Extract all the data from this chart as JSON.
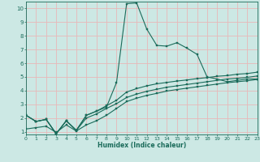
{
  "xlabel": "Humidex (Indice chaleur)",
  "bg_color": "#cce8e4",
  "grid_color": "#e8b8b8",
  "line_color": "#1a6b5a",
  "xlim": [
    0,
    23
  ],
  "ylim": [
    0.8,
    10.5
  ],
  "xticks": [
    0,
    1,
    2,
    3,
    4,
    5,
    6,
    7,
    8,
    9,
    10,
    11,
    12,
    13,
    14,
    15,
    16,
    17,
    18,
    19,
    20,
    21,
    22,
    23
  ],
  "yticks": [
    1,
    2,
    3,
    4,
    5,
    6,
    7,
    8,
    9,
    10
  ],
  "spike_x": [
    0,
    1,
    2,
    3,
    4,
    5,
    6,
    7,
    8,
    9,
    10,
    11,
    12,
    13,
    14,
    15,
    16,
    17,
    18,
    19,
    20,
    21,
    22,
    23
  ],
  "spike_y": [
    2.2,
    1.75,
    1.9,
    0.85,
    1.8,
    1.1,
    2.2,
    2.5,
    2.8,
    4.6,
    10.35,
    10.4,
    8.5,
    7.3,
    7.25,
    7.5,
    7.1,
    6.65,
    5.0,
    4.85,
    4.65,
    4.75,
    4.85,
    4.85
  ],
  "smooth1_x": [
    0,
    1,
    2,
    3,
    4,
    5,
    6,
    7,
    8,
    9,
    10,
    11,
    12,
    13,
    14,
    15,
    16,
    17,
    18,
    19,
    20,
    21,
    22,
    23
  ],
  "smooth1_y": [
    2.2,
    1.75,
    1.9,
    0.85,
    1.8,
    1.1,
    2.2,
    2.5,
    2.9,
    3.3,
    3.9,
    4.15,
    4.35,
    4.5,
    4.6,
    4.7,
    4.78,
    4.88,
    4.95,
    5.05,
    5.1,
    5.2,
    5.25,
    5.35
  ],
  "smooth2_x": [
    0,
    1,
    2,
    3,
    4,
    5,
    6,
    7,
    8,
    9,
    10,
    11,
    12,
    13,
    14,
    15,
    16,
    17,
    18,
    19,
    20,
    21,
    22,
    23
  ],
  "smooth2_y": [
    2.2,
    1.75,
    1.9,
    0.85,
    1.8,
    1.1,
    2.0,
    2.3,
    2.7,
    3.05,
    3.5,
    3.75,
    3.95,
    4.1,
    4.25,
    4.35,
    4.45,
    4.55,
    4.65,
    4.75,
    4.85,
    4.9,
    4.97,
    5.07
  ],
  "smooth3_x": [
    0,
    1,
    2,
    3,
    4,
    5,
    6,
    7,
    8,
    9,
    10,
    11,
    12,
    13,
    14,
    15,
    16,
    17,
    18,
    19,
    20,
    21,
    22,
    23
  ],
  "smooth3_y": [
    1.2,
    1.3,
    1.4,
    0.95,
    1.5,
    1.05,
    1.5,
    1.8,
    2.2,
    2.7,
    3.2,
    3.45,
    3.65,
    3.8,
    3.97,
    4.08,
    4.18,
    4.28,
    4.38,
    4.48,
    4.58,
    4.65,
    4.72,
    4.82
  ]
}
